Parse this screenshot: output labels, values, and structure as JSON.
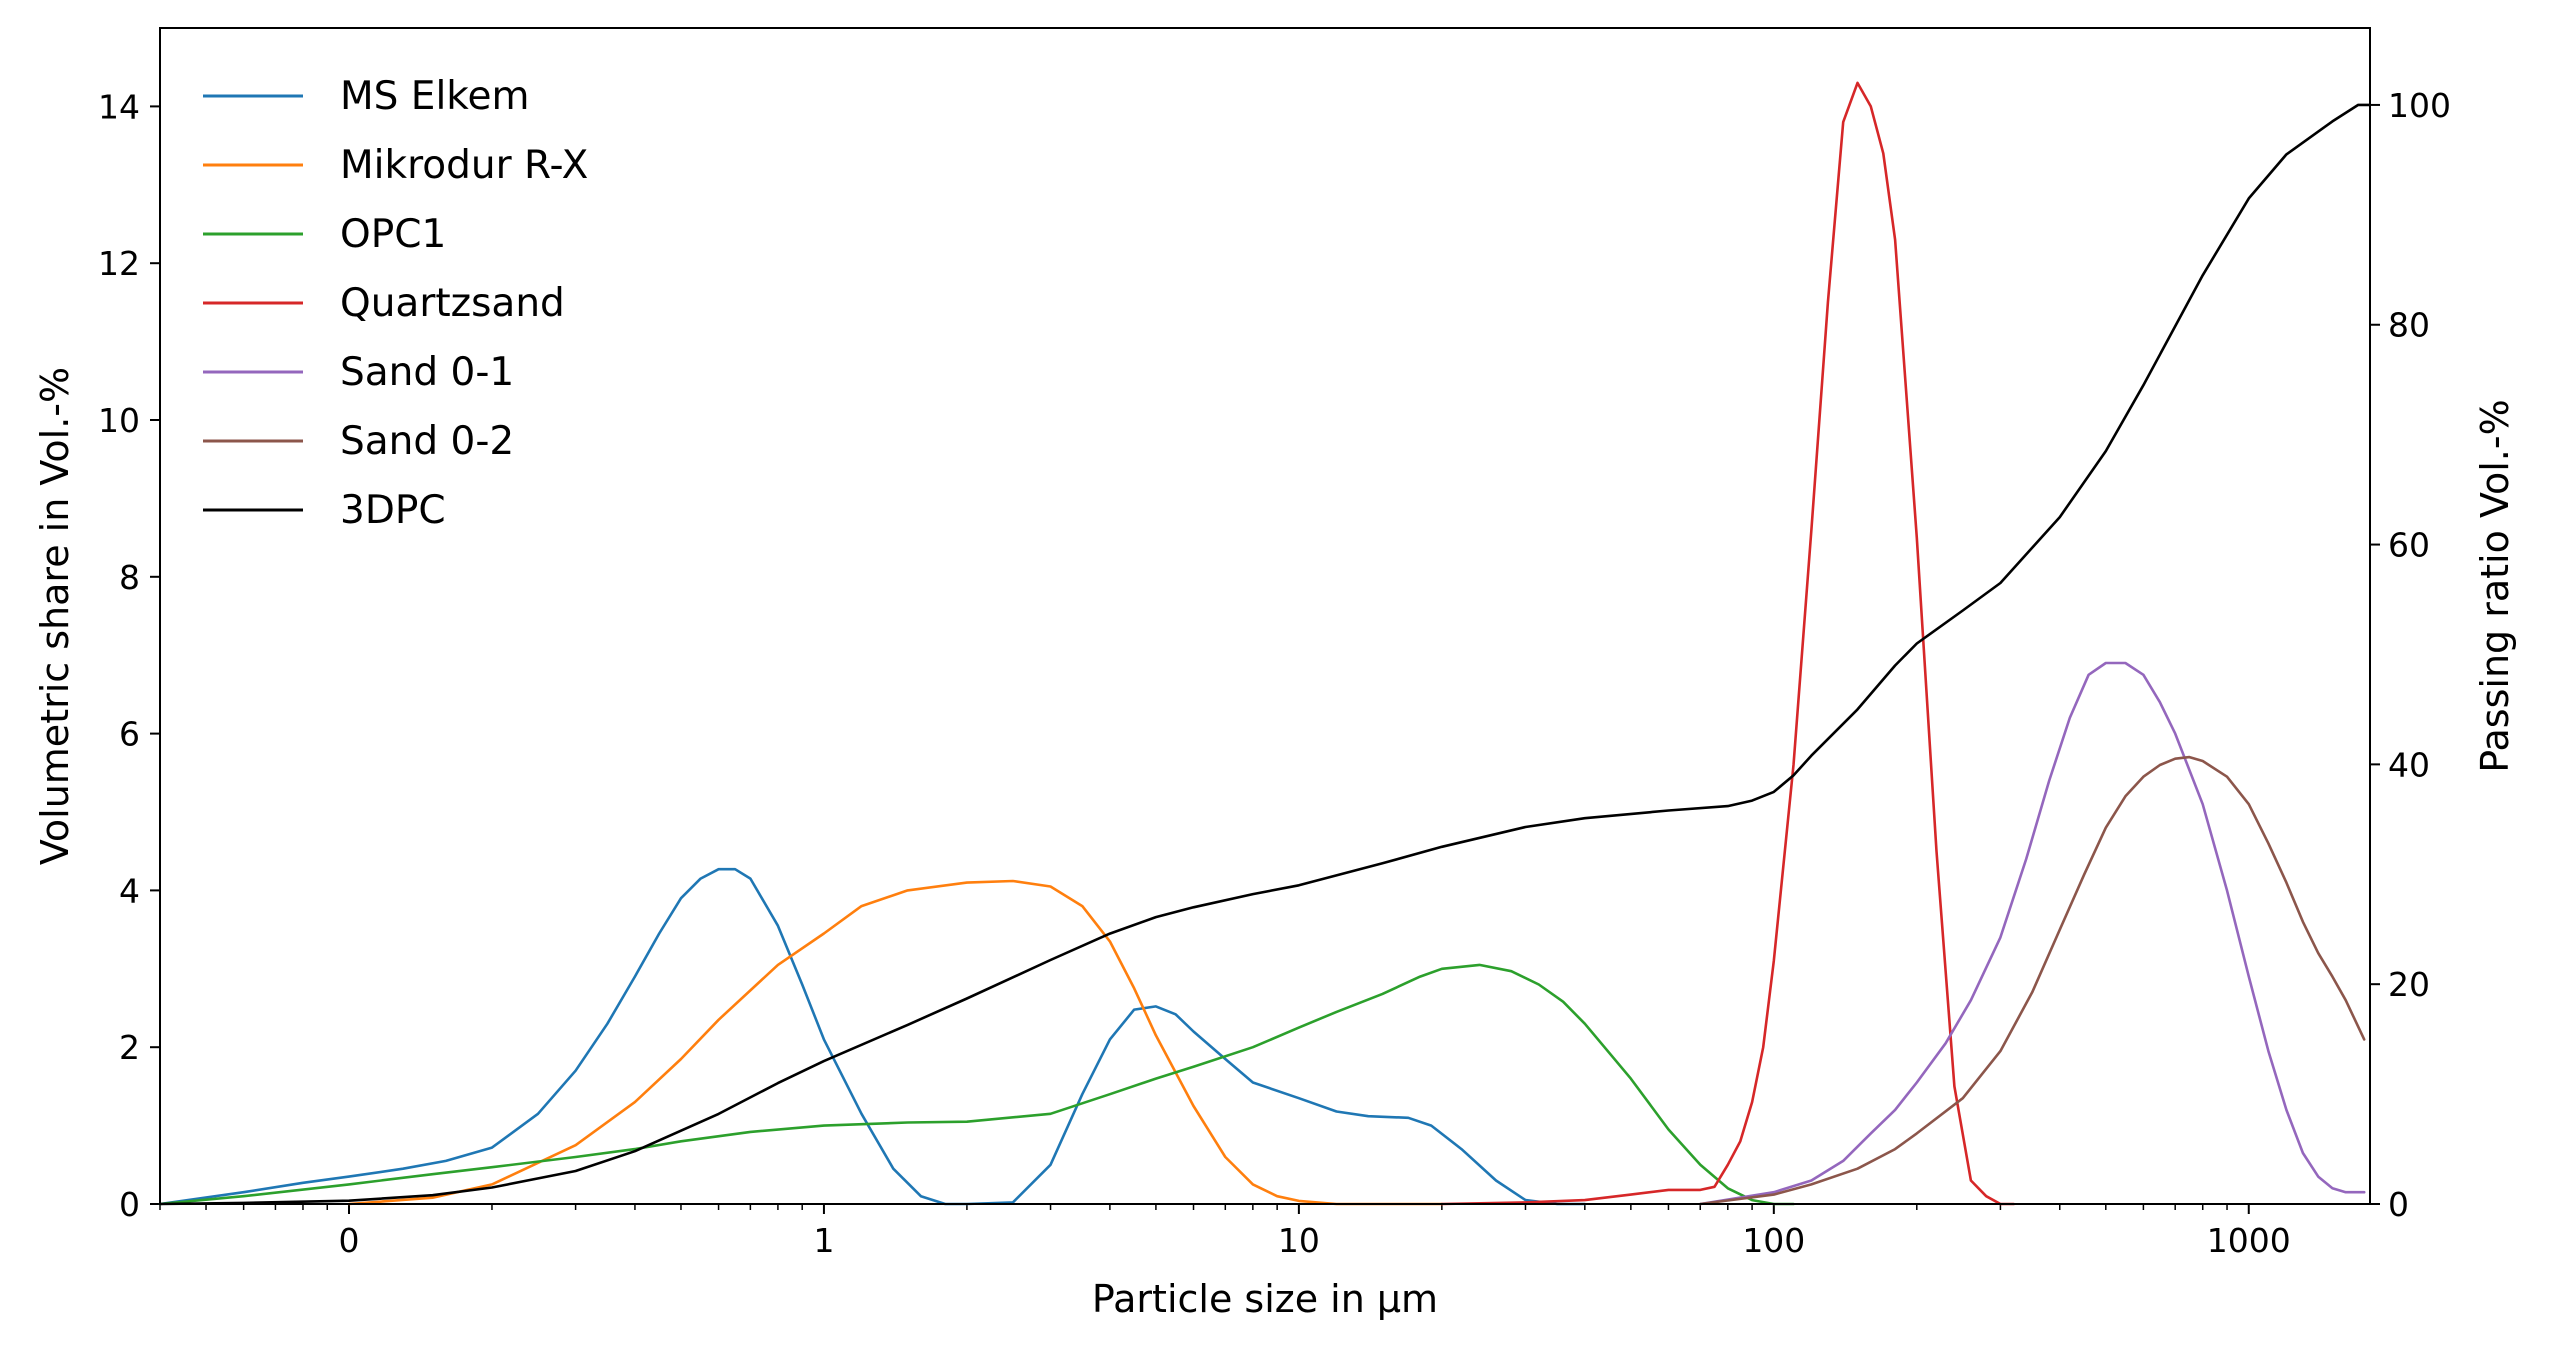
{
  "chart_data": {
    "type": "line",
    "title": "",
    "xlabel": "Particle size in µm",
    "ylabel": "Volumetric share in Vol.-%",
    "y2label": "Passing ratio Vol.-%",
    "x_scale": "log",
    "xlim": [
      0.04,
      1800
    ],
    "ylim": [
      0,
      15
    ],
    "y2lim": [
      0,
      107
    ],
    "x_ticks": [
      0.1,
      1,
      10,
      100,
      1000
    ],
    "x_tick_labels": [
      "0",
      "1",
      "10",
      "100",
      "1000"
    ],
    "y_ticks": [
      0,
      2,
      4,
      6,
      8,
      10,
      12,
      14
    ],
    "y2_ticks": [
      0,
      20,
      40,
      60,
      80,
      100
    ],
    "legend_position": "top-left",
    "series": [
      {
        "name": "MS Elkem",
        "color": "#1f77b4",
        "axis": "left",
        "x": [
          0.04,
          0.06,
          0.08,
          0.1,
          0.13,
          0.16,
          0.2,
          0.25,
          0.3,
          0.35,
          0.4,
          0.45,
          0.5,
          0.55,
          0.6,
          0.65,
          0.7,
          0.8,
          0.9,
          1.0,
          1.2,
          1.4,
          1.6,
          1.8,
          2.0,
          2.5,
          3.0,
          3.5,
          4.0,
          4.5,
          5.0,
          5.5,
          6.0,
          7.0,
          8.0,
          10,
          12,
          14,
          17,
          19,
          22,
          26,
          30,
          35,
          40
        ],
        "y": [
          0,
          0.15,
          0.27,
          0.35,
          0.45,
          0.55,
          0.72,
          1.15,
          1.7,
          2.3,
          2.9,
          3.45,
          3.9,
          4.15,
          4.27,
          4.27,
          4.15,
          3.55,
          2.8,
          2.1,
          1.15,
          0.45,
          0.1,
          0.0,
          0.0,
          0.02,
          0.5,
          1.4,
          2.1,
          2.48,
          2.52,
          2.42,
          2.2,
          1.85,
          1.55,
          1.35,
          1.18,
          1.12,
          1.1,
          1.0,
          0.7,
          0.3,
          0.05,
          0.0,
          0.0
        ]
      },
      {
        "name": "Mikrodur R-X",
        "color": "#ff7f0e",
        "axis": "left",
        "x": [
          0.1,
          0.15,
          0.2,
          0.3,
          0.4,
          0.5,
          0.6,
          0.8,
          1.0,
          1.2,
          1.5,
          2.0,
          2.5,
          3.0,
          3.5,
          4.0,
          4.5,
          5.0,
          6.0,
          7.0,
          8.0,
          9.0,
          10,
          12,
          15,
          20
        ],
        "y": [
          0.0,
          0.08,
          0.25,
          0.75,
          1.3,
          1.85,
          2.35,
          3.05,
          3.45,
          3.8,
          4.0,
          4.1,
          4.12,
          4.05,
          3.8,
          3.35,
          2.75,
          2.15,
          1.25,
          0.6,
          0.25,
          0.1,
          0.04,
          0.0,
          0.0,
          0.0
        ]
      },
      {
        "name": "OPC1",
        "color": "#2ca02c",
        "axis": "left",
        "x": [
          0.04,
          0.06,
          0.1,
          0.15,
          0.2,
          0.3,
          0.4,
          0.5,
          0.7,
          1.0,
          1.5,
          2.0,
          3.0,
          4.0,
          5.0,
          6.0,
          8.0,
          10,
          12,
          15,
          18,
          20,
          24,
          28,
          32,
          36,
          40,
          50,
          60,
          70,
          80,
          90,
          100,
          110
        ],
        "y": [
          0,
          0.1,
          0.25,
          0.38,
          0.47,
          0.6,
          0.7,
          0.8,
          0.92,
          1.0,
          1.04,
          1.05,
          1.15,
          1.4,
          1.6,
          1.75,
          2.0,
          2.25,
          2.45,
          2.68,
          2.9,
          3.0,
          3.05,
          2.97,
          2.8,
          2.58,
          2.3,
          1.6,
          0.95,
          0.5,
          0.2,
          0.05,
          0.0,
          0.0
        ]
      },
      {
        "name": "Quartzsand",
        "color": "#d62728",
        "axis": "left",
        "x": [
          20,
          30,
          40,
          50,
          60,
          70,
          75,
          80,
          85,
          90,
          95,
          100,
          110,
          120,
          130,
          140,
          150,
          160,
          170,
          180,
          200,
          220,
          240,
          260,
          280,
          300,
          320
        ],
        "y": [
          0,
          0.02,
          0.05,
          0.12,
          0.18,
          0.18,
          0.22,
          0.5,
          0.8,
          1.3,
          2.0,
          3.1,
          5.6,
          8.6,
          11.5,
          13.8,
          14.3,
          14.0,
          13.4,
          12.3,
          8.5,
          4.5,
          1.5,
          0.3,
          0.1,
          0.0,
          0.0
        ]
      },
      {
        "name": "Sand 0-1",
        "color": "#9467bd",
        "axis": "left",
        "x": [
          70,
          100,
          120,
          140,
          160,
          180,
          200,
          230,
          260,
          300,
          340,
          380,
          420,
          460,
          500,
          550,
          600,
          650,
          700,
          800,
          900,
          1000,
          1100,
          1200,
          1300,
          1400,
          1500,
          1600,
          1750
        ],
        "y": [
          0,
          0.15,
          0.3,
          0.55,
          0.9,
          1.2,
          1.55,
          2.05,
          2.6,
          3.4,
          4.4,
          5.4,
          6.2,
          6.75,
          6.9,
          6.9,
          6.75,
          6.4,
          6.0,
          5.1,
          4.0,
          2.9,
          1.95,
          1.2,
          0.65,
          0.35,
          0.2,
          0.15,
          0.15
        ]
      },
      {
        "name": "Sand 0-2",
        "color": "#8c564b",
        "axis": "left",
        "x": [
          70,
          100,
          120,
          150,
          180,
          200,
          250,
          300,
          350,
          400,
          450,
          500,
          550,
          600,
          650,
          700,
          750,
          800,
          900,
          1000,
          1100,
          1200,
          1300,
          1400,
          1500,
          1600,
          1750
        ],
        "y": [
          0,
          0.12,
          0.25,
          0.45,
          0.7,
          0.9,
          1.35,
          1.95,
          2.7,
          3.5,
          4.2,
          4.8,
          5.2,
          5.45,
          5.6,
          5.68,
          5.7,
          5.65,
          5.45,
          5.1,
          4.6,
          4.1,
          3.6,
          3.2,
          2.9,
          2.6,
          2.1
        ]
      },
      {
        "name": "3DPC",
        "color": "#000000",
        "axis": "right",
        "x": [
          0.04,
          0.06,
          0.1,
          0.15,
          0.2,
          0.3,
          0.4,
          0.6,
          0.8,
          1.0,
          1.5,
          2.0,
          3.0,
          4.0,
          5.0,
          6.0,
          8.0,
          10,
          15,
          20,
          30,
          40,
          60,
          80,
          90,
          100,
          110,
          120,
          150,
          180,
          200,
          250,
          300,
          400,
          500,
          600,
          800,
          1000,
          1200,
          1500,
          1700,
          1800
        ],
        "y": [
          0,
          0.1,
          0.3,
          0.8,
          1.5,
          3.0,
          4.8,
          8.2,
          11.0,
          13.0,
          16.3,
          18.7,
          22.2,
          24.6,
          26.1,
          27.0,
          28.2,
          29.0,
          31.0,
          32.5,
          34.3,
          35.1,
          35.8,
          36.2,
          36.7,
          37.5,
          39.0,
          40.8,
          45.0,
          49.0,
          51.0,
          54.0,
          56.5,
          62.5,
          68.5,
          74.5,
          84.5,
          91.5,
          95.5,
          98.5,
          100.0,
          100.0
        ]
      }
    ]
  }
}
